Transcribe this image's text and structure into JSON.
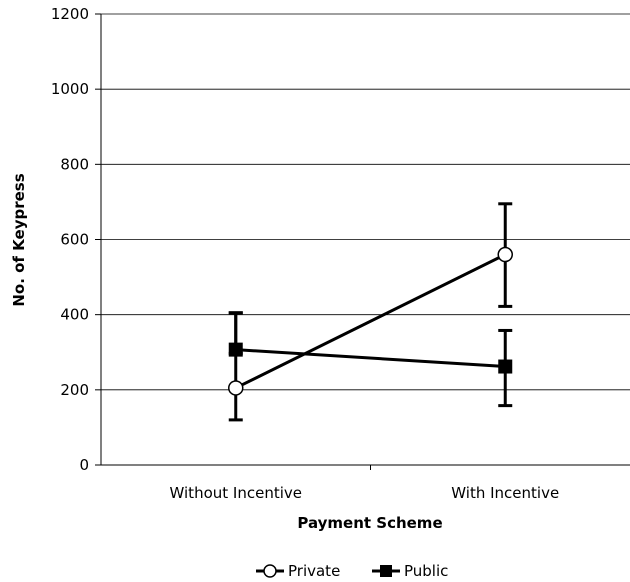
{
  "chart_data": {
    "type": "line",
    "categories": [
      "Without Incentive",
      "With Incentive"
    ],
    "xlabel": "Payment Scheme",
    "ylabel": "No. of Keypress",
    "ylim": [
      0,
      1200
    ],
    "yticks": [
      0,
      200,
      400,
      600,
      800,
      1000,
      1200
    ],
    "grid": true,
    "legend_position": "bottom",
    "series": [
      {
        "name": "Private",
        "marker": "open-circle",
        "color": "#000000",
        "values": [
          205,
          560
        ],
        "error_low": [
          120,
          422
        ],
        "error_high": [
          405,
          695
        ]
      },
      {
        "name": "Public",
        "marker": "filled-square",
        "color": "#000000",
        "values": [
          307,
          262
        ],
        "error_low": [
          297,
          158
        ],
        "error_high": [
          405,
          358
        ]
      }
    ]
  }
}
